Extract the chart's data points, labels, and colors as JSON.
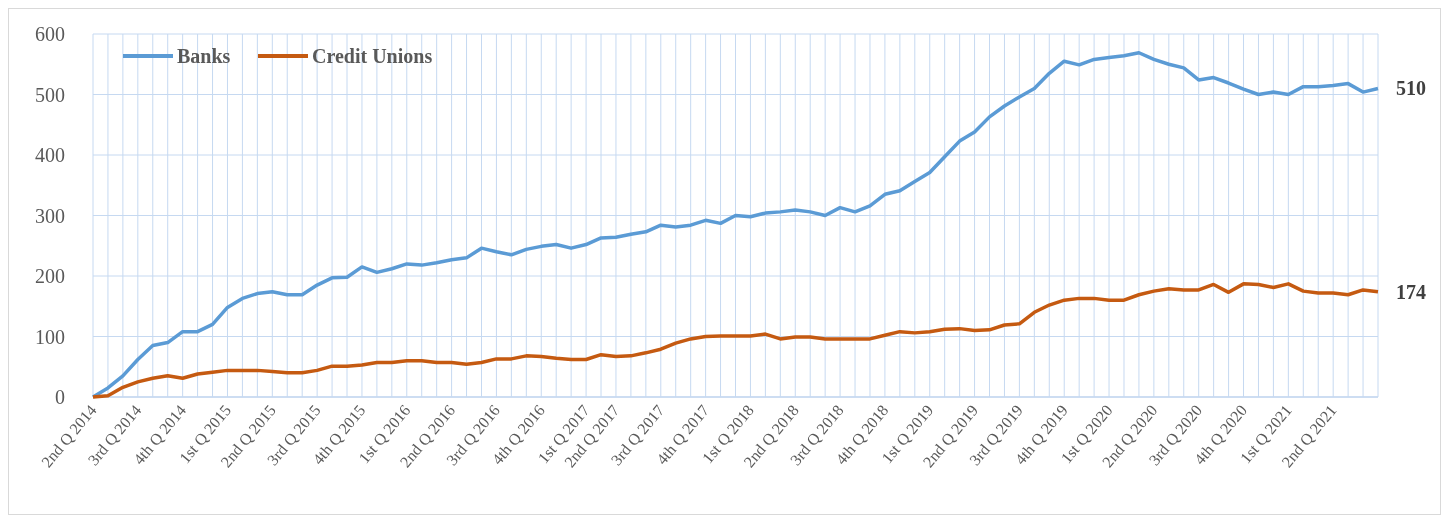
{
  "chart_data": {
    "type": "line",
    "categories": [
      "2nd Q 2014",
      null,
      null,
      "3rd Q 2014",
      null,
      null,
      "4th Q 2014",
      null,
      null,
      "1st Q 2015",
      null,
      null,
      "2nd Q 2015",
      null,
      null,
      "3rd Q 2015",
      null,
      null,
      "4th Q 2015",
      null,
      null,
      "1st Q 2016",
      null,
      null,
      "2nd Q 2016",
      null,
      null,
      "3rd Q 2016",
      null,
      null,
      "4th Q 2016",
      null,
      null,
      "1st Q 2017",
      null,
      "2nd Q 2017",
      null,
      null,
      "3rd Q 2017",
      null,
      null,
      "4th Q 2017",
      null,
      null,
      "1st Q 2018",
      null,
      null,
      "2nd Q 2018",
      null,
      null,
      "3rd Q 2018",
      null,
      null,
      "4th Q 2018",
      null,
      null,
      "1st Q 2019",
      null,
      null,
      "2nd Q 2019",
      null,
      null,
      "3rd Q 2019",
      null,
      null,
      "4th Q 2019",
      null,
      null,
      "1st Q 2020",
      null,
      null,
      "2nd Q 2020",
      null,
      null,
      "3rd Q 2020",
      null,
      null,
      "4th Q 2020",
      null,
      null,
      "1st Q 2021",
      null,
      null,
      "2nd Q 2021",
      null,
      null,
      null
    ],
    "series": [
      {
        "name": "Banks",
        "color": "#5b9bd5",
        "values": [
          0,
          15,
          35,
          62,
          85,
          90,
          108,
          108,
          120,
          148,
          163,
          171,
          174,
          169,
          169,
          185,
          197,
          198,
          215,
          206,
          212,
          220,
          218,
          222,
          227,
          230,
          246,
          240,
          235,
          244,
          249,
          252,
          246,
          252,
          263,
          264,
          269,
          273,
          284,
          281,
          284,
          292,
          287,
          300,
          298,
          304,
          306,
          309,
          306,
          300,
          313,
          306,
          316,
          335,
          341,
          356,
          371,
          397,
          423,
          438,
          463,
          481,
          496,
          510,
          535,
          555,
          549,
          558,
          561,
          564,
          569,
          558,
          550,
          544,
          524,
          528,
          519,
          509,
          500,
          504,
          500,
          513,
          513,
          515,
          518,
          504,
          510
        ],
        "value_labels": [
          null,
          null,
          null,
          null,
          null,
          null,
          null,
          null,
          null,
          null,
          null,
          null,
          null,
          null,
          null,
          null,
          null,
          null,
          null,
          null,
          null,
          null,
          null,
          null,
          null,
          null,
          null,
          null,
          null,
          null,
          null,
          null,
          null,
          null,
          null,
          null,
          null,
          null,
          null,
          null,
          null,
          null,
          null,
          null,
          null,
          null,
          null,
          null,
          null,
          null,
          null,
          null,
          null,
          null,
          null,
          null,
          null,
          null,
          null,
          null,
          null,
          null,
          null,
          null,
          null,
          null,
          null,
          null,
          null,
          null,
          null,
          null,
          null,
          null,
          null,
          null,
          null,
          null,
          null,
          null,
          null,
          null,
          null,
          null,
          null,
          null,
          "510"
        ]
      },
      {
        "name": "Credit Unions",
        "color": "#c55a11",
        "values": [
          0,
          2,
          16,
          25,
          31,
          35,
          31,
          38,
          41,
          44,
          44,
          44,
          42,
          40,
          40,
          44,
          51,
          51,
          53,
          57,
          57,
          60,
          60,
          57,
          57,
          54,
          57,
          63,
          63,
          68,
          67,
          64,
          62,
          62,
          70,
          67,
          68,
          73,
          79,
          89,
          96,
          100,
          101,
          101,
          101,
          104,
          96,
          99,
          99,
          96,
          96,
          96,
          96,
          102,
          108,
          106,
          108,
          112,
          113,
          110,
          111,
          119,
          121,
          140,
          152,
          160,
          163,
          163,
          160,
          160,
          169,
          175,
          179,
          177,
          177,
          186,
          173,
          187,
          186,
          181,
          187,
          175,
          172,
          172,
          169,
          177,
          174
        ],
        "value_labels": [
          null,
          null,
          null,
          null,
          null,
          null,
          null,
          null,
          null,
          null,
          null,
          null,
          null,
          null,
          null,
          null,
          null,
          null,
          null,
          null,
          null,
          null,
          null,
          null,
          null,
          null,
          null,
          null,
          null,
          null,
          null,
          null,
          null,
          null,
          null,
          null,
          null,
          null,
          null,
          null,
          null,
          null,
          null,
          null,
          null,
          null,
          null,
          null,
          null,
          null,
          null,
          null,
          null,
          null,
          null,
          null,
          null,
          null,
          null,
          null,
          null,
          null,
          null,
          null,
          null,
          null,
          null,
          null,
          null,
          null,
          null,
          null,
          null,
          null,
          null,
          null,
          null,
          null,
          null,
          null,
          null,
          null,
          null,
          null,
          null,
          null,
          "174"
        ]
      }
    ],
    "ylim": [
      0,
      600
    ],
    "yticks": [
      0,
      100,
      200,
      300,
      400,
      500,
      600
    ],
    "grid": true,
    "legend": "top left"
  }
}
